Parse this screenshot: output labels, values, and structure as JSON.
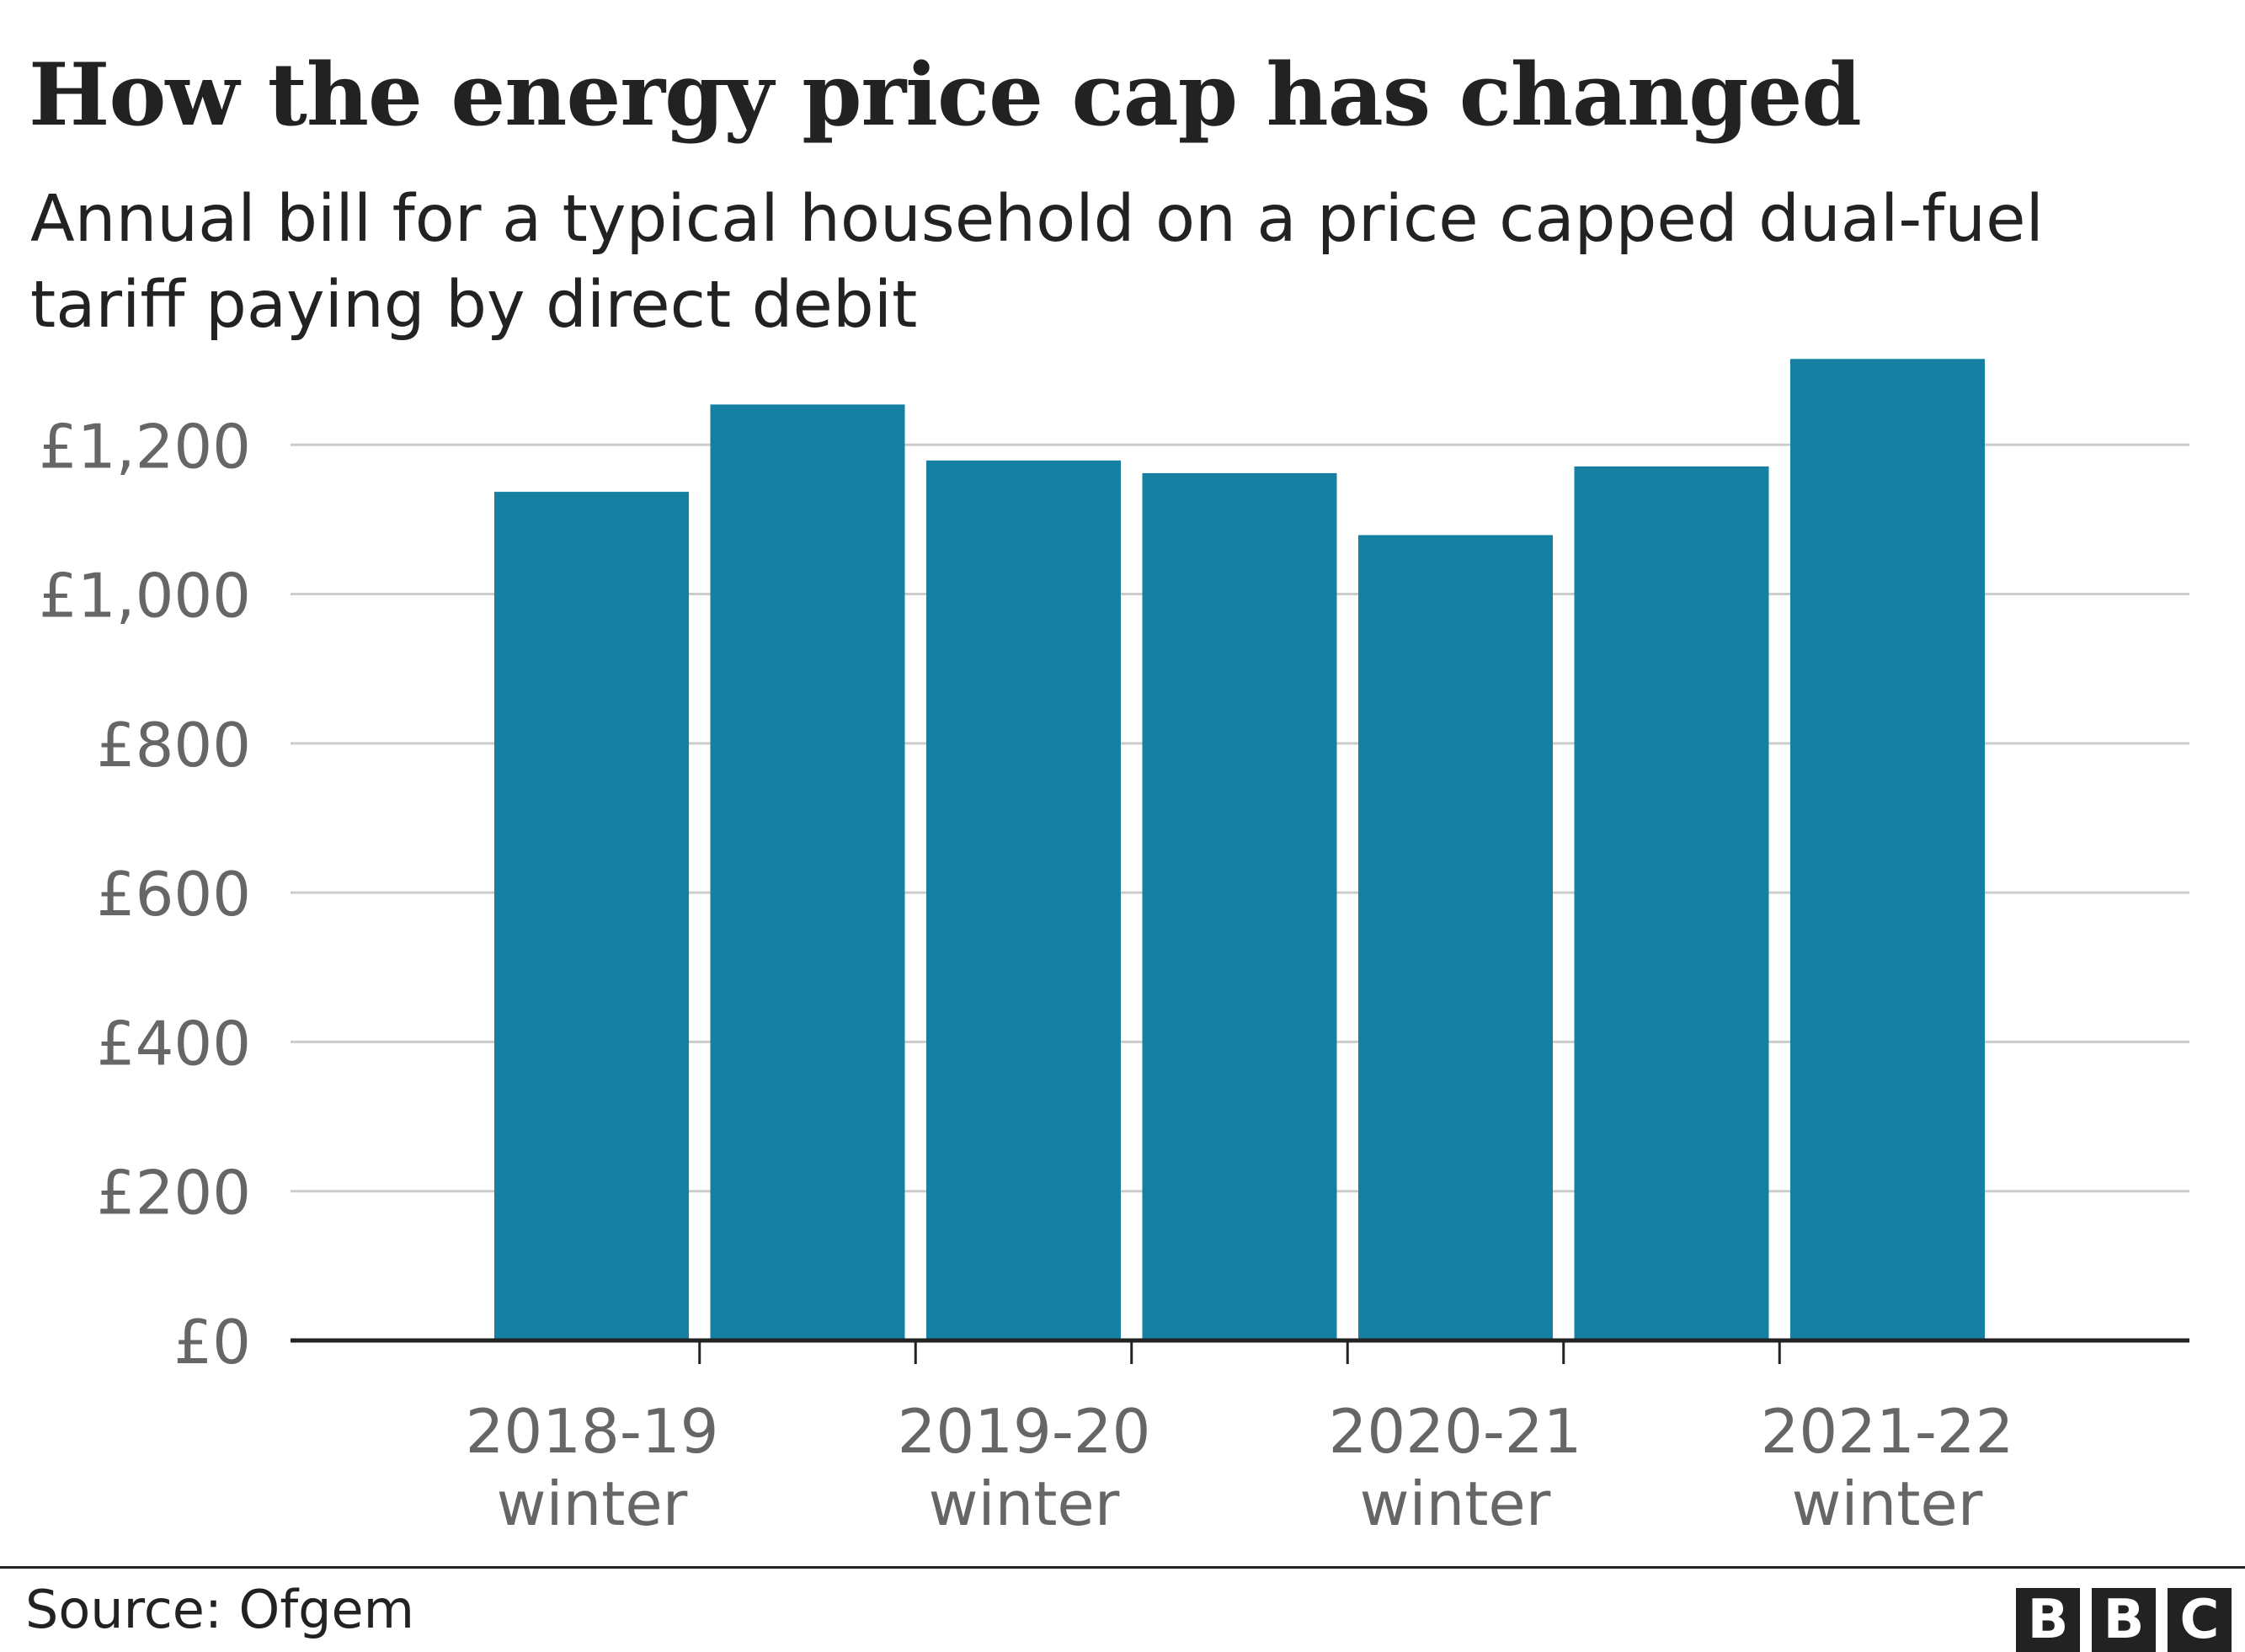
{
  "title": "How the energy price cap has changed",
  "subtitle": "Annual bill for a typical household on a price capped dual-fuel tariff paying by direct debit",
  "source": "Source: Ofgem",
  "logo": {
    "letters": [
      "B",
      "B",
      "C"
    ],
    "brand": "BBC"
  },
  "colors": {
    "bar": "#1580a1",
    "grid": "#cccccc",
    "axis": "#222222",
    "tick_text": "#666666",
    "text": "#222222"
  },
  "chart_data": {
    "type": "bar",
    "title": "How the energy price cap has changed",
    "subtitle": "Annual bill for a typical household on a price capped dual-fuel tariff paying by direct debit",
    "xlabel": "",
    "ylabel": "",
    "ylim": [
      0,
      1277
    ],
    "yticks": [
      0,
      200,
      400,
      600,
      800,
      1000,
      1200
    ],
    "ytick_labels": [
      "£0",
      "£200",
      "£400",
      "£600",
      "£800",
      "£1,000",
      "£1,200"
    ],
    "x_tick_labels": [
      {
        "line1": "2018-19",
        "line2": "winter"
      },
      {
        "line1": "2019-20",
        "line2": "winter"
      },
      {
        "line1": "2020-21",
        "line2": "winter"
      },
      {
        "line1": "2021-22",
        "line2": "winter"
      }
    ],
    "values": [
      1137,
      1254,
      1179,
      1162,
      1079,
      1171,
      1315
    ],
    "grid": true,
    "legend": "none"
  }
}
